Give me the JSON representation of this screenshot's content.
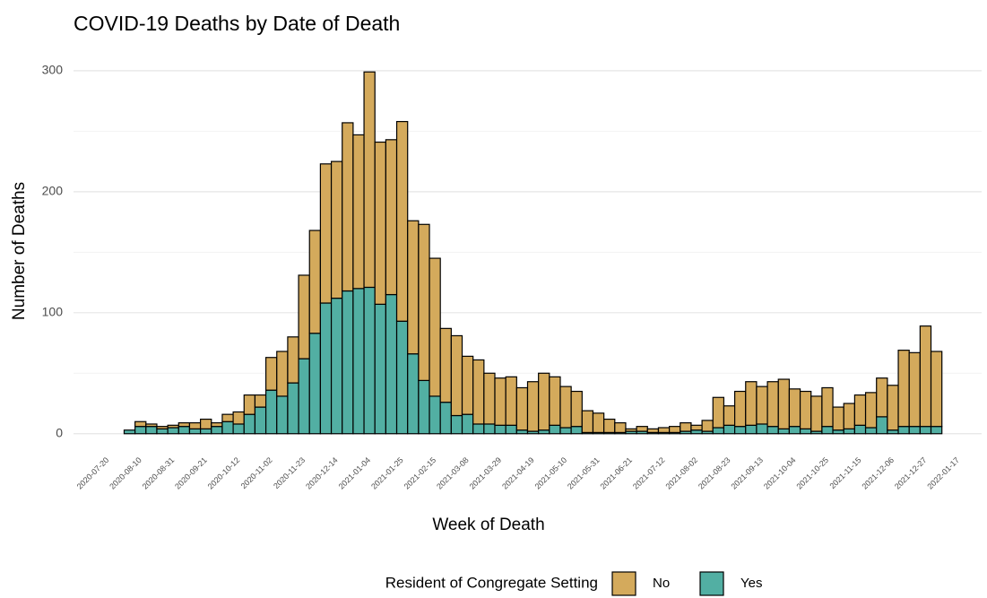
{
  "chart_data": {
    "type": "stacked_bar",
    "title": "COVID-19 Deaths by Date of Death",
    "x_label": "Week of Death",
    "y_label": "Number of Deaths",
    "legend_title": "Resident of Congregate Setting",
    "legend_position": "bottom",
    "x": [
      "2020-08-03",
      "2020-08-10",
      "2020-08-17",
      "2020-08-24",
      "2020-08-31",
      "2020-09-07",
      "2020-09-14",
      "2020-09-21",
      "2020-09-28",
      "2020-10-05",
      "2020-10-12",
      "2020-10-19",
      "2020-10-26",
      "2020-11-02",
      "2020-11-09",
      "2020-11-16",
      "2020-11-23",
      "2020-11-30",
      "2020-12-07",
      "2020-12-14",
      "2020-12-21",
      "2020-12-28",
      "2021-01-04",
      "2021-01-11",
      "2021-01-18",
      "2021-01-25",
      "2021-02-01",
      "2021-02-08",
      "2021-02-15",
      "2021-02-22",
      "2021-03-01",
      "2021-03-08",
      "2021-03-15",
      "2021-03-22",
      "2021-03-29",
      "2021-04-05",
      "2021-04-12",
      "2021-04-19",
      "2021-04-26",
      "2021-05-03",
      "2021-05-10",
      "2021-05-17",
      "2021-05-24",
      "2021-05-31",
      "2021-06-07",
      "2021-06-14",
      "2021-06-21",
      "2021-06-28",
      "2021-07-05",
      "2021-07-12",
      "2021-07-19",
      "2021-07-26",
      "2021-08-02",
      "2021-08-09",
      "2021-08-16",
      "2021-08-23",
      "2021-08-30",
      "2021-09-06",
      "2021-09-13",
      "2021-09-20",
      "2021-09-27",
      "2021-10-04",
      "2021-10-11",
      "2021-10-18",
      "2021-10-25",
      "2021-11-01",
      "2021-11-08",
      "2021-11-15",
      "2021-11-22",
      "2021-11-29",
      "2021-12-06",
      "2021-12-13",
      "2021-12-20",
      "2021-12-27",
      "2022-01-03"
    ],
    "series": [
      {
        "name": "No",
        "color": "#d4aa5c",
        "values": [
          0,
          4,
          2,
          2,
          2,
          3,
          5,
          8,
          3,
          6,
          10,
          16,
          10,
          27,
          37,
          38,
          69,
          85,
          115,
          113,
          139,
          127,
          178,
          134,
          128,
          165,
          110,
          129,
          114,
          61,
          66,
          48,
          53,
          42,
          39,
          40,
          35,
          41,
          47,
          40,
          34,
          29,
          18,
          16,
          11,
          8,
          2,
          4,
          3,
          4,
          5,
          7,
          4,
          9,
          25,
          16,
          29,
          36,
          31,
          37,
          41,
          31,
          31,
          29,
          32,
          19,
          21,
          25,
          29,
          32,
          37,
          63,
          61,
          83,
          62
        ]
      },
      {
        "name": "Yes",
        "color": "#52afa3",
        "values": [
          3,
          6,
          6,
          4,
          5,
          6,
          4,
          4,
          6,
          10,
          8,
          16,
          22,
          36,
          31,
          42,
          62,
          83,
          108,
          112,
          118,
          120,
          121,
          107,
          115,
          93,
          66,
          44,
          31,
          26,
          15,
          16,
          8,
          8,
          7,
          7,
          3,
          2,
          3,
          7,
          5,
          6,
          1,
          1,
          1,
          1,
          2,
          2,
          1,
          1,
          1,
          2,
          3,
          2,
          5,
          7,
          6,
          7,
          8,
          6,
          4,
          6,
          4,
          2,
          6,
          3,
          4,
          7,
          5,
          14,
          3,
          6,
          6,
          6,
          6
        ]
      }
    ],
    "stack_order": [
      "Yes",
      "No"
    ],
    "xlim": [
      "2020-06-28",
      "2022-02-01"
    ],
    "xticks": [
      "2020-07-20",
      "2020-08-10",
      "2020-08-31",
      "2020-09-21",
      "2020-10-12",
      "2020-11-02",
      "2020-11-23",
      "2020-12-14",
      "2021-01-04",
      "2021-01-25",
      "2021-02-15",
      "2021-03-08",
      "2021-03-29",
      "2021-04-19",
      "2021-05-10",
      "2021-05-31",
      "2021-06-21",
      "2021-07-12",
      "2021-08-02",
      "2021-08-23",
      "2021-09-13",
      "2021-10-04",
      "2021-10-25",
      "2021-11-15",
      "2021-12-06",
      "2021-12-27",
      "2022-01-17"
    ],
    "ylim": [
      -15,
      314
    ],
    "yticks": [
      0,
      100,
      200,
      300
    ],
    "y_minor_ticks": [
      50,
      150,
      250
    ],
    "grid": true
  }
}
